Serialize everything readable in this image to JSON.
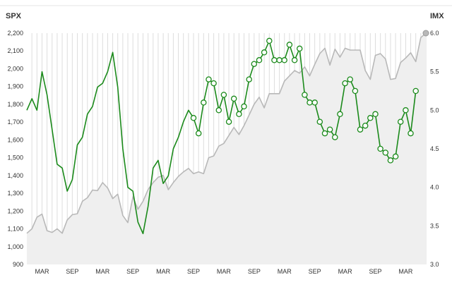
{
  "chart_data": {
    "type": "line",
    "left_axis_title": "SPX",
    "right_axis_title": "IMX",
    "left_ticks": [
      "900",
      "1,000",
      "1,100",
      "1,200",
      "1,300",
      "1,400",
      "1,500",
      "1,600",
      "1,700",
      "1,800",
      "1,900",
      "2,000",
      "2,100",
      "2,200"
    ],
    "right_ticks": [
      "3.0",
      "3.5",
      "4.0",
      "4.5",
      "5.0",
      "5.5",
      "6.0"
    ],
    "ylim_left": [
      900,
      2200
    ],
    "ylim_right": [
      3.0,
      6.0
    ],
    "x_ticks": [
      "MAR",
      "SEP",
      "MAR",
      "SEP",
      "MAR",
      "SEP",
      "MAR",
      "SEP",
      "MAR",
      "SEP",
      "MAR",
      "SEP",
      "MAR"
    ],
    "x_tick_months": [
      3,
      9,
      15,
      21,
      27,
      33,
      39,
      45,
      51,
      57,
      63,
      69,
      75
    ],
    "xlim_months": [
      0,
      79
    ],
    "colors": {
      "spx": "#b8b8b8",
      "spx_fill": "#efefef",
      "imx": "#1b8a1b",
      "grid": "#dddddd"
    },
    "series": [
      {
        "axis": "left",
        "points": [
          [
            0,
            1075
          ],
          [
            1,
            1100
          ],
          [
            2,
            1165
          ],
          [
            3,
            1183
          ],
          [
            4,
            1090
          ],
          [
            5,
            1080
          ],
          [
            6,
            1100
          ],
          [
            7,
            1075
          ],
          [
            8,
            1150
          ],
          [
            9,
            1180
          ],
          [
            10,
            1185
          ],
          [
            11,
            1255
          ],
          [
            12,
            1275
          ],
          [
            13,
            1318
          ],
          [
            14,
            1315
          ],
          [
            15,
            1360
          ],
          [
            16,
            1330
          ],
          [
            17,
            1270
          ],
          [
            18,
            1295
          ],
          [
            19,
            1175
          ],
          [
            20,
            1135
          ],
          [
            21,
            1280
          ],
          [
            22,
            1210
          ],
          [
            23,
            1255
          ],
          [
            24,
            1320
          ],
          [
            25,
            1360
          ],
          [
            26,
            1390
          ],
          [
            27,
            1400
          ],
          [
            28,
            1320
          ],
          [
            29,
            1360
          ],
          [
            30,
            1395
          ],
          [
            31,
            1420
          ],
          [
            32,
            1440
          ],
          [
            33,
            1410
          ],
          [
            34,
            1420
          ],
          [
            35,
            1410
          ],
          [
            36,
            1500
          ],
          [
            37,
            1510
          ],
          [
            38,
            1565
          ],
          [
            39,
            1580
          ],
          [
            40,
            1625
          ],
          [
            41,
            1670
          ],
          [
            42,
            1630
          ],
          [
            43,
            1680
          ],
          [
            44,
            1740
          ],
          [
            45,
            1800
          ],
          [
            46,
            1840
          ],
          [
            47,
            1780
          ],
          [
            48,
            1860
          ],
          [
            49,
            1860
          ],
          [
            50,
            1860
          ],
          [
            51,
            1930
          ],
          [
            52,
            1960
          ],
          [
            53,
            1990
          ],
          [
            54,
            1975
          ],
          [
            55,
            2010
          ],
          [
            56,
            1960
          ],
          [
            57,
            2025
          ],
          [
            58,
            2085
          ],
          [
            59,
            2115
          ],
          [
            60,
            2020
          ],
          [
            61,
            2110
          ],
          [
            62,
            2065
          ],
          [
            63,
            2115
          ],
          [
            64,
            2105
          ],
          [
            65,
            2105
          ],
          [
            66,
            2105
          ],
          [
            67,
            1990
          ],
          [
            68,
            1940
          ],
          [
            69,
            2075
          ],
          [
            70,
            2085
          ],
          [
            71,
            2055
          ],
          [
            72,
            1940
          ],
          [
            73,
            1945
          ],
          [
            74,
            2035
          ],
          [
            75,
            2060
          ],
          [
            76,
            2090
          ],
          [
            77,
            2040
          ],
          [
            78,
            2175
          ],
          [
            79,
            2200
          ]
        ]
      },
      {
        "axis": "right",
        "points": [
          [
            0,
            5.0
          ],
          [
            1,
            5.15
          ],
          [
            2,
            5.0
          ],
          [
            3,
            5.5
          ],
          [
            4,
            5.2
          ],
          [
            5,
            4.75
          ],
          [
            6,
            4.3
          ],
          [
            7,
            4.25
          ],
          [
            8,
            3.95
          ],
          [
            9,
            4.1
          ],
          [
            10,
            4.55
          ],
          [
            11,
            4.65
          ],
          [
            12,
            4.95
          ],
          [
            13,
            5.05
          ],
          [
            14,
            5.3
          ],
          [
            15,
            5.35
          ],
          [
            16,
            5.5
          ],
          [
            17,
            5.75
          ],
          [
            18,
            5.3
          ],
          [
            19,
            4.5
          ],
          [
            20,
            4.0
          ],
          [
            21,
            3.95
          ],
          [
            22,
            3.55
          ],
          [
            23,
            3.4
          ],
          [
            24,
            3.75
          ],
          [
            25,
            4.25
          ],
          [
            26,
            4.35
          ],
          [
            27,
            4.05
          ],
          [
            28,
            4.15
          ],
          [
            29,
            4.5
          ],
          [
            30,
            4.65
          ],
          [
            31,
            4.85
          ],
          [
            32,
            5.0
          ],
          [
            33,
            4.9
          ],
          [
            34,
            4.7
          ],
          [
            35,
            5.1
          ],
          [
            36,
            5.4
          ],
          [
            37,
            5.35
          ],
          [
            38,
            5.0
          ],
          [
            39,
            5.2
          ],
          [
            40,
            4.85
          ],
          [
            41,
            5.15
          ],
          [
            42,
            4.95
          ],
          [
            43,
            5.05
          ],
          [
            44,
            5.4
          ],
          [
            45,
            5.6
          ],
          [
            46,
            5.65
          ],
          [
            47,
            5.75
          ],
          [
            48,
            5.9
          ],
          [
            49,
            5.65
          ],
          [
            50,
            5.65
          ],
          [
            51,
            5.65
          ],
          [
            52,
            5.85
          ],
          [
            53,
            5.65
          ],
          [
            54,
            5.8
          ],
          [
            55,
            5.2
          ],
          [
            56,
            5.1
          ],
          [
            57,
            5.1
          ],
          [
            58,
            4.85
          ],
          [
            59,
            4.7
          ],
          [
            60,
            4.75
          ],
          [
            61,
            4.65
          ],
          [
            62,
            4.95
          ],
          [
            63,
            5.35
          ],
          [
            64,
            5.4
          ],
          [
            65,
            5.25
          ],
          [
            66,
            4.75
          ],
          [
            67,
            4.8
          ],
          [
            68,
            4.9
          ],
          [
            69,
            4.95
          ],
          [
            70,
            4.5
          ],
          [
            71,
            4.45
          ],
          [
            72,
            4.35
          ],
          [
            73,
            4.4
          ],
          [
            74,
            4.85
          ],
          [
            75,
            5.0
          ],
          [
            76,
            4.7
          ],
          [
            77,
            5.25
          ]
        ]
      }
    ]
  }
}
